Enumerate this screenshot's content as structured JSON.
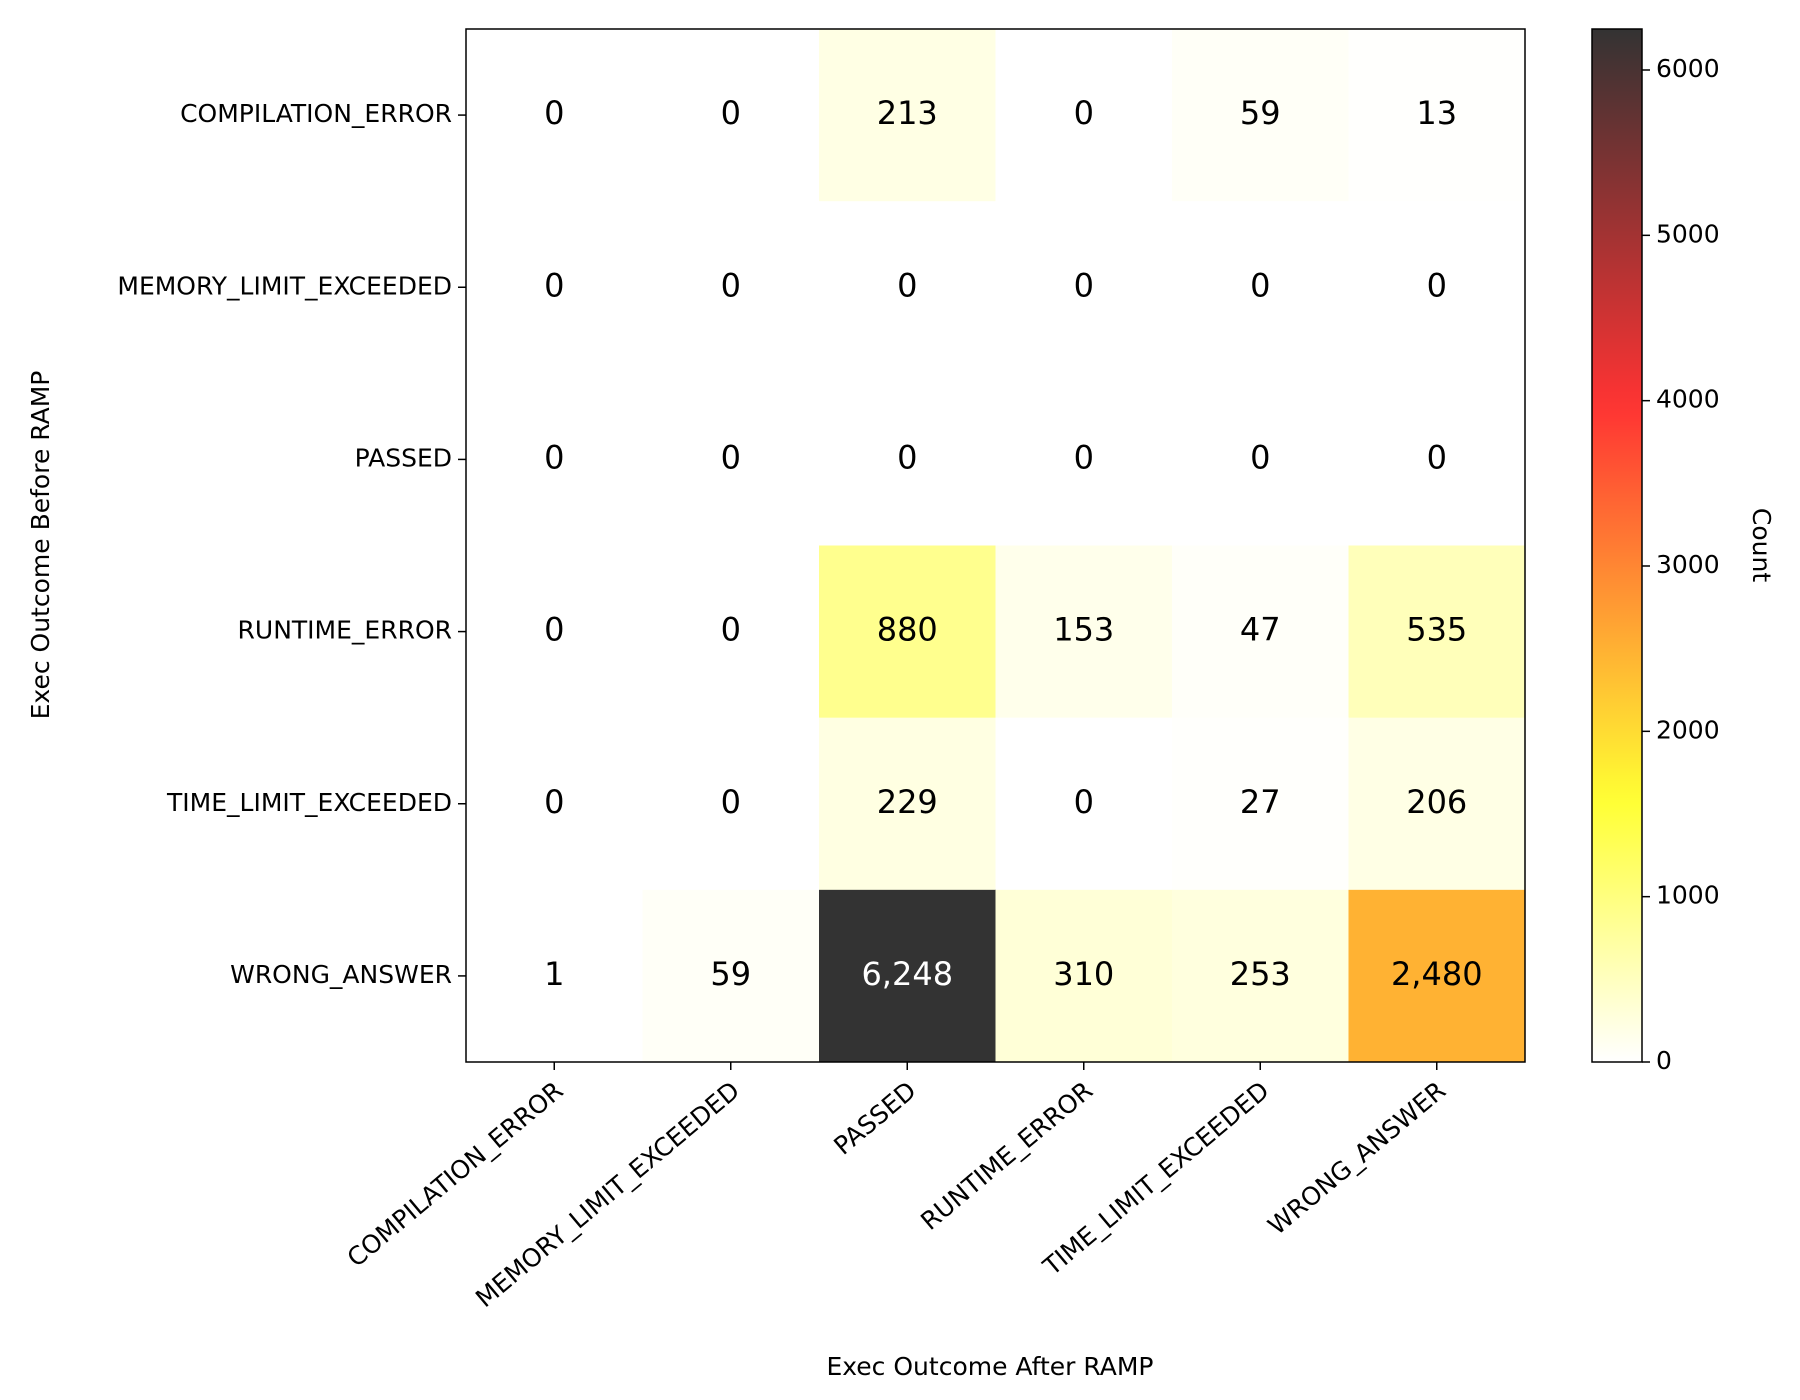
{
  "chart_data": {
    "type": "heatmap",
    "x_label": "Exec Outcome After RAMP",
    "y_label": "Exec Outcome Before RAMP",
    "x_categories": [
      "COMPILATION_ERROR",
      "MEMORY_LIMIT_EXCEEDED",
      "PASSED",
      "RUNTIME_ERROR",
      "TIME_LIMIT_EXCEEDED",
      "WRONG_ANSWER"
    ],
    "y_categories": [
      "COMPILATION_ERROR",
      "MEMORY_LIMIT_EXCEEDED",
      "PASSED",
      "RUNTIME_ERROR",
      "TIME_LIMIT_EXCEEDED",
      "WRONG_ANSWER"
    ],
    "values": [
      [
        0,
        0,
        213,
        0,
        59,
        13
      ],
      [
        0,
        0,
        0,
        0,
        0,
        0
      ],
      [
        0,
        0,
        0,
        0,
        0,
        0
      ],
      [
        0,
        0,
        880,
        153,
        47,
        535
      ],
      [
        0,
        0,
        229,
        0,
        27,
        206
      ],
      [
        1,
        59,
        6248,
        310,
        253,
        2480
      ]
    ],
    "value_labels": [
      [
        "0",
        "0",
        "213",
        "0",
        "59",
        "13"
      ],
      [
        "0",
        "0",
        "0",
        "0",
        "0",
        "0"
      ],
      [
        "0",
        "0",
        "0",
        "0",
        "0",
        "0"
      ],
      [
        "0",
        "0",
        "880",
        "153",
        "47",
        "535"
      ],
      [
        "0",
        "0",
        "229",
        "0",
        "27",
        "206"
      ],
      [
        "1",
        "59",
        "6,248",
        "310",
        "253",
        "2,480"
      ]
    ],
    "colormap": "hot_r",
    "alpha": 0.8,
    "clim": [
      0,
      6248
    ],
    "colorbar_ticks": [
      0,
      1000,
      2000,
      3000,
      4000,
      5000,
      6000
    ],
    "colorbar_label": "Count"
  }
}
